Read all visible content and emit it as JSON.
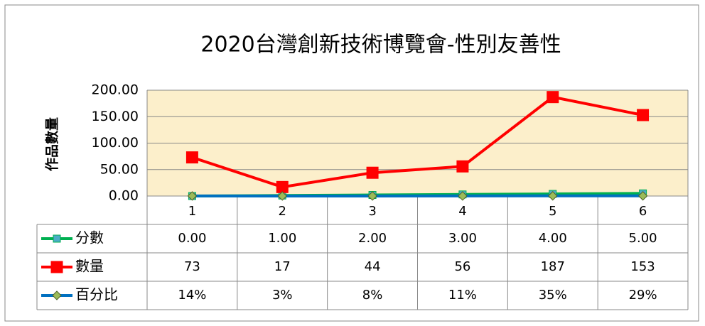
{
  "chart_data": {
    "type": "line",
    "title": "2020台灣創新技術博覽會-性別友善性",
    "y_label": "作品數量",
    "categories": [
      "1",
      "2",
      "3",
      "4",
      "5",
      "6"
    ],
    "series": [
      {
        "name": "分數",
        "color": "#00b050",
        "marker": "square",
        "marker_color": "#4bacc6",
        "values": [
          0,
          1,
          2,
          3,
          4,
          5
        ],
        "value_labels": [
          "0.00",
          "1.00",
          "2.00",
          "3.00",
          "4.00",
          "5.00"
        ]
      },
      {
        "name": "數量",
        "color": "#ff0000",
        "marker": "square",
        "marker_color": "#ff0000",
        "values": [
          73,
          17,
          44,
          56,
          187,
          153
        ]
      },
      {
        "name": "百分比",
        "color": "#0070c0",
        "marker": "diamond",
        "marker_color": "#9bbb59",
        "values": [
          0.14,
          0.03,
          0.08,
          0.11,
          0.35,
          0.29
        ],
        "value_labels": [
          "14%",
          "3%",
          "8%",
          "11%",
          "35%",
          "29%"
        ]
      }
    ],
    "ylim": [
      0,
      200
    ],
    "yticks": [
      {
        "value": 0,
        "label": "0.00"
      },
      {
        "value": 50,
        "label": "50.00"
      },
      {
        "value": 100,
        "label": "100.00"
      },
      {
        "value": 150,
        "label": "150.00"
      },
      {
        "value": 200,
        "label": "200.00"
      }
    ],
    "grid": true,
    "plot_background": "#fcefcb"
  }
}
